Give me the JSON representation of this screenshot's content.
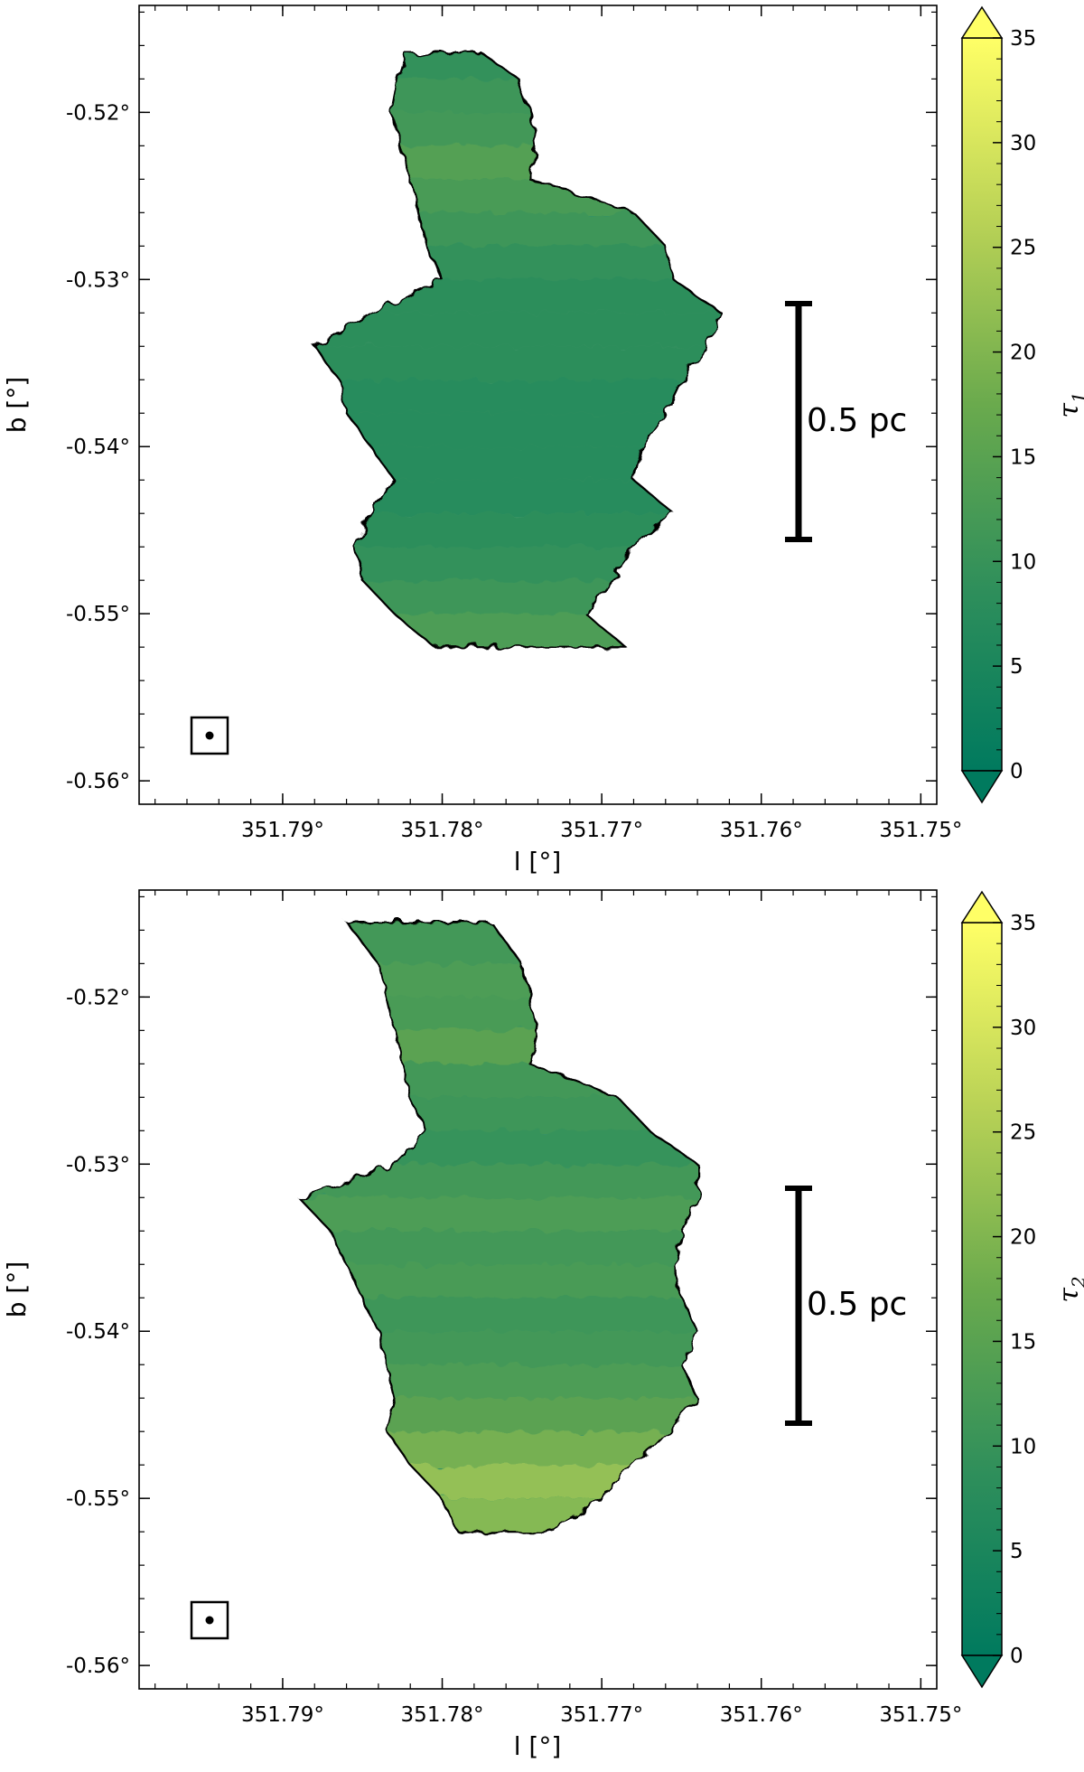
{
  "colors": {
    "cmap_low": "#007a5e",
    "cmap_mid": "#6aaa4d",
    "cmap_high": "#ffff66",
    "contour": "#000000",
    "frame": "#000000"
  },
  "chart_data": [
    {
      "type": "heatmap",
      "title": "",
      "xlabel": "l [°]",
      "ylabel": "b [°]",
      "x_axis": {
        "reversed": true,
        "range": [
          351.799,
          351.749
        ],
        "ticks": [
          351.79,
          351.78,
          351.77,
          351.76,
          351.75
        ],
        "tick_labels": [
          "351.79°",
          "351.78°",
          "351.77°",
          "351.76°",
          "351.75°"
        ]
      },
      "y_axis": {
        "range": [
          -0.5614,
          -0.5136
        ],
        "ticks": [
          -0.52,
          -0.53,
          -0.54,
          -0.55,
          -0.56
        ],
        "tick_labels": [
          "-0.52°",
          "-0.53°",
          "-0.54°",
          "-0.55°",
          "-0.56°"
        ]
      },
      "colorbar": {
        "label": "τ",
        "label_sub": "1",
        "range": [
          0,
          35
        ],
        "extend": "both",
        "ticks": [
          0,
          5,
          10,
          15,
          20,
          25,
          30,
          35
        ],
        "tick_labels": [
          "0",
          "5",
          "10",
          "15",
          "20",
          "25",
          "30",
          "35"
        ]
      },
      "scalebar": {
        "label": "0.5 pc"
      },
      "beam_marker": "beam-icon",
      "map_approximation": [
        {
          "b": -0.5165,
          "l": [
            351.7823,
            351.7775
          ],
          "tau": 9
        },
        {
          "b": -0.518,
          "l": [
            351.7828,
            351.7752
          ],
          "tau": 11
        },
        {
          "b": -0.52,
          "l": [
            351.7832,
            351.7745
          ],
          "tau": 12
        },
        {
          "b": -0.522,
          "l": [
            351.7826,
            351.7742
          ],
          "tau": 15
        },
        {
          "b": -0.524,
          "l": [
            351.782,
            351.7745
          ],
          "tau": 13
        },
        {
          "b": -0.526,
          "l": [
            351.7815,
            351.768
          ],
          "tau": 11
        },
        {
          "b": -0.528,
          "l": [
            351.781,
            351.766
          ],
          "tau": 9
        },
        {
          "b": -0.53,
          "l": [
            351.78,
            351.7655
          ],
          "tau": 8
        },
        {
          "b": -0.532,
          "l": [
            351.7845,
            351.7625
          ],
          "tau": 8
        },
        {
          "b": -0.534,
          "l": [
            351.788,
            351.7635
          ],
          "tau": 8
        },
        {
          "b": -0.536,
          "l": [
            351.7865,
            351.765
          ],
          "tau": 7
        },
        {
          "b": -0.538,
          "l": [
            351.786,
            351.766
          ],
          "tau": 7
        },
        {
          "b": -0.54,
          "l": [
            351.7845,
            351.7675
          ],
          "tau": 7
        },
        {
          "b": -0.542,
          "l": [
            351.783,
            351.768
          ],
          "tau": 7
        },
        {
          "b": -0.544,
          "l": [
            351.7845,
            351.7655
          ],
          "tau": 8
        },
        {
          "b": -0.546,
          "l": [
            351.7855,
            351.768
          ],
          "tau": 9
        },
        {
          "b": -0.548,
          "l": [
            351.785,
            351.7695
          ],
          "tau": 11
        },
        {
          "b": -0.55,
          "l": [
            351.783,
            351.771
          ],
          "tau": 14
        },
        {
          "b": -0.552,
          "l": [
            351.7805,
            351.7685
          ],
          "tau": 9
        }
      ]
    },
    {
      "type": "heatmap",
      "title": "",
      "xlabel": "l [°]",
      "ylabel": "b [°]",
      "x_axis": {
        "reversed": true,
        "range": [
          351.799,
          351.749
        ],
        "ticks": [
          351.79,
          351.78,
          351.77,
          351.76,
          351.75
        ],
        "tick_labels": [
          "351.79°",
          "351.78°",
          "351.77°",
          "351.76°",
          "351.75°"
        ]
      },
      "y_axis": {
        "range": [
          -0.5614,
          -0.5136
        ],
        "ticks": [
          -0.52,
          -0.53,
          -0.54,
          -0.55,
          -0.56
        ],
        "tick_labels": [
          "-0.52°",
          "-0.53°",
          "-0.54°",
          "-0.55°",
          "-0.56°"
        ]
      },
      "colorbar": {
        "label": "τ",
        "label_sub": "2",
        "range": [
          0,
          35
        ],
        "extend": "both",
        "ticks": [
          0,
          5,
          10,
          15,
          20,
          25,
          30,
          35
        ],
        "tick_labels": [
          "0",
          "5",
          "10",
          "15",
          "20",
          "25",
          "30",
          "35"
        ]
      },
      "scalebar": {
        "label": "0.5 pc"
      },
      "beam_marker": "beam-icon",
      "map_approximation": [
        {
          "b": -0.5155,
          "l": [
            351.786,
            351.777
          ],
          "tau": 12
        },
        {
          "b": -0.518,
          "l": [
            351.784,
            351.775
          ],
          "tau": 14
        },
        {
          "b": -0.52,
          "l": [
            351.7835,
            351.7745
          ],
          "tau": 13
        },
        {
          "b": -0.522,
          "l": [
            351.783,
            351.774
          ],
          "tau": 16
        },
        {
          "b": -0.524,
          "l": [
            351.7825,
            351.7745
          ],
          "tau": 12
        },
        {
          "b": -0.526,
          "l": [
            351.782,
            351.769
          ],
          "tau": 11
        },
        {
          "b": -0.528,
          "l": [
            351.781,
            351.767
          ],
          "tau": 10
        },
        {
          "b": -0.53,
          "l": [
            351.783,
            351.764
          ],
          "tau": 12
        },
        {
          "b": -0.532,
          "l": [
            351.789,
            351.764
          ],
          "tau": 14
        },
        {
          "b": -0.534,
          "l": [
            351.787,
            351.765
          ],
          "tau": 12
        },
        {
          "b": -0.536,
          "l": [
            351.786,
            351.7655
          ],
          "tau": 13
        },
        {
          "b": -0.538,
          "l": [
            351.785,
            351.765
          ],
          "tau": 11
        },
        {
          "b": -0.54,
          "l": [
            351.784,
            351.764
          ],
          "tau": 12
        },
        {
          "b": -0.542,
          "l": [
            351.7835,
            351.765
          ],
          "tau": 14
        },
        {
          "b": -0.544,
          "l": [
            351.783,
            351.764
          ],
          "tau": 16
        },
        {
          "b": -0.546,
          "l": [
            351.7835,
            351.766
          ],
          "tau": 20
        },
        {
          "b": -0.548,
          "l": [
            351.782,
            351.768
          ],
          "tau": 24
        },
        {
          "b": -0.55,
          "l": [
            351.78,
            351.77
          ],
          "tau": 22
        },
        {
          "b": -0.552,
          "l": [
            351.779,
            351.7735
          ],
          "tau": 9
        }
      ]
    }
  ]
}
